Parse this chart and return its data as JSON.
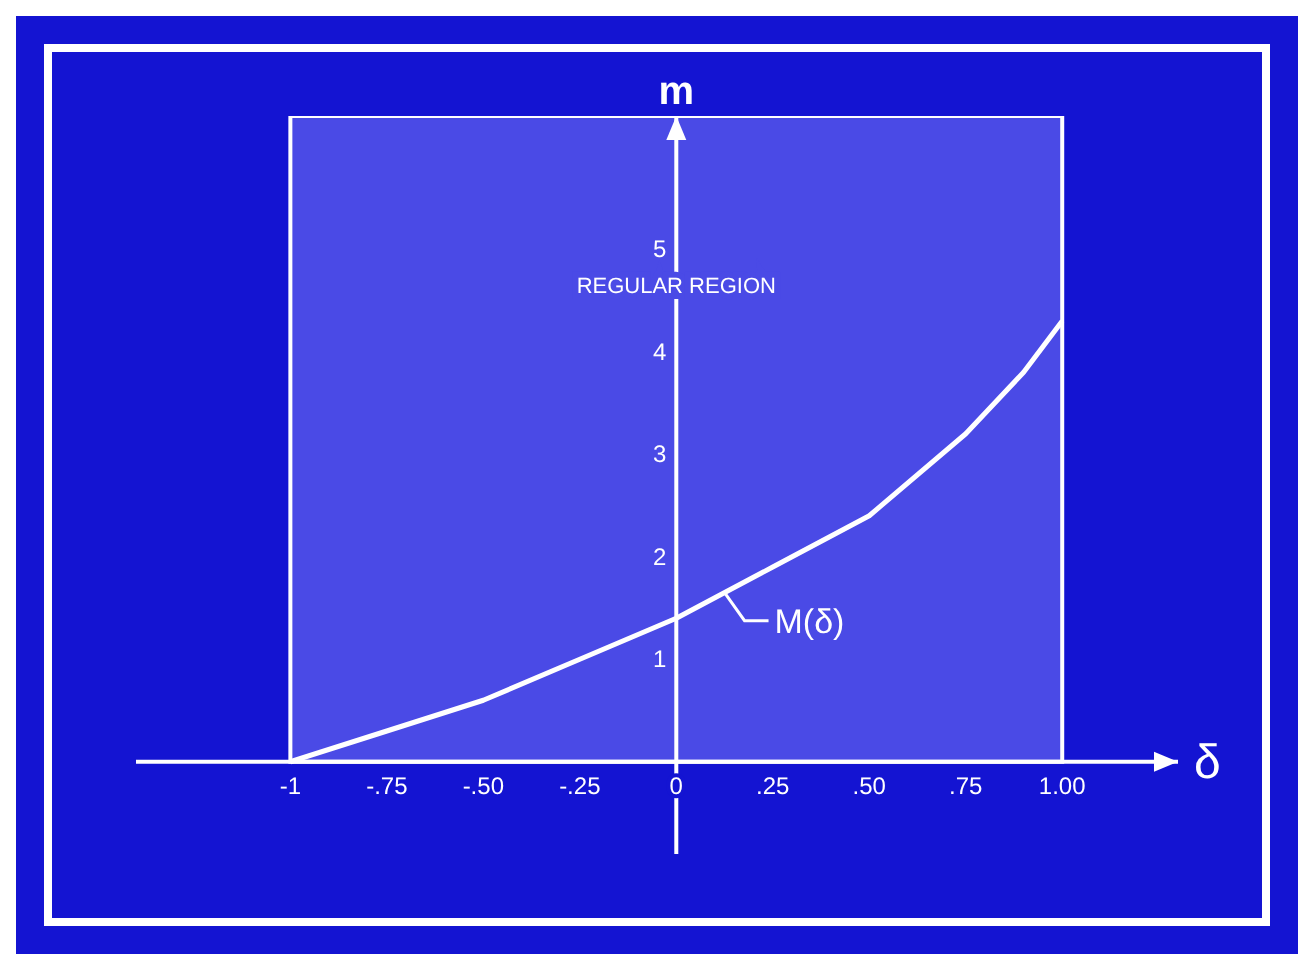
{
  "chart_data": {
    "type": "line",
    "xlabel": "δ",
    "ylabel": "m",
    "x": [
      -1,
      -0.75,
      -0.5,
      -0.25,
      0,
      0.25,
      0.5,
      0.75,
      0.9,
      1
    ],
    "series": [
      {
        "name": "M(δ)",
        "color": "#ffffff",
        "values": [
          0,
          0.3,
          0.6,
          1.0,
          1.4,
          1.9,
          2.4,
          3.2,
          3.8,
          4.3
        ]
      }
    ],
    "xlim": [
      -1.4,
      1.3
    ],
    "ylim": [
      -0.9,
      6.3
    ],
    "xticks": [
      {
        "value": -1,
        "label": "-1"
      },
      {
        "value": -0.75,
        "label": "-.75"
      },
      {
        "value": -0.5,
        "label": "-.50"
      },
      {
        "value": -0.25,
        "label": "-.25"
      },
      0,
      {
        "value": 0.25,
        "label": ".25"
      },
      {
        "value": 0.5,
        "label": ".50"
      },
      {
        "value": 0.75,
        "label": ".75"
      },
      {
        "value": 1,
        "label": "1.00"
      }
    ],
    "yticks": [
      1,
      2,
      3,
      4,
      5
    ],
    "bands": [
      {
        "axis": "x",
        "from": -1,
        "to": 1,
        "label": "REGULAR REGION",
        "color": "#4a4ae6"
      }
    ],
    "marker": "none",
    "line_style": "solid"
  }
}
